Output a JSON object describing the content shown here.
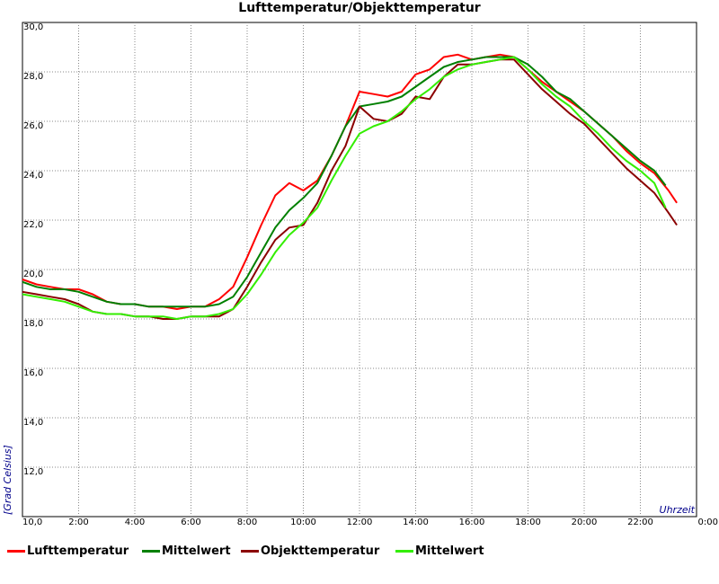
{
  "chart_data": {
    "type": "line",
    "title": "Lufttemperatur/Objekttemperatur",
    "xlabel": "Uhrzeit",
    "ylabel": "[Grad Celsius]",
    "xlim": [
      0,
      24
    ],
    "ylim": [
      10,
      30
    ],
    "grid": true,
    "legend_position": "bottom",
    "x_ticks": [
      "0:00",
      "2:00",
      "4:00",
      "6:00",
      "8:00",
      "10:00",
      "12:00",
      "14:00",
      "16:00",
      "18:00",
      "20:00",
      "22:00",
      "0:00"
    ],
    "y_ticks": [
      "10,0",
      "12,0",
      "14,0",
      "16,0",
      "18,0",
      "20,0",
      "22,0",
      "24,0",
      "26,0",
      "28,0",
      "30,0"
    ],
    "series": [
      {
        "name": "Lufttemperatur",
        "color": "#ff0000",
        "x": [
          0,
          0.5,
          1,
          1.5,
          2,
          2.5,
          3,
          3.5,
          4,
          4.5,
          5,
          5.5,
          6,
          6.5,
          7,
          7.5,
          8,
          8.5,
          9,
          9.5,
          10,
          10.5,
          11,
          11.5,
          12,
          12.5,
          13,
          13.5,
          14,
          14.5,
          15,
          15.5,
          16,
          16.5,
          17,
          17.5,
          18,
          18.5,
          19,
          19.5,
          20,
          20.5,
          21,
          21.5,
          22,
          22.5,
          23,
          23.3
        ],
        "y": [
          19.6,
          19.4,
          19.3,
          19.2,
          19.2,
          19.0,
          18.7,
          18.6,
          18.6,
          18.5,
          18.5,
          18.4,
          18.5,
          18.5,
          18.8,
          19.3,
          20.5,
          21.8,
          23.0,
          23.5,
          23.2,
          23.6,
          24.6,
          25.8,
          27.2,
          27.1,
          27.0,
          27.2,
          27.9,
          28.1,
          28.6,
          28.7,
          28.5,
          28.6,
          28.7,
          28.6,
          28.1,
          27.6,
          27.2,
          26.8,
          26.4,
          25.9,
          25.4,
          24.8,
          24.3,
          23.9,
          23.2,
          22.7
        ]
      },
      {
        "name": "Mittelwert",
        "color": "#008000",
        "x": [
          0,
          0.5,
          1,
          1.5,
          2,
          2.5,
          3,
          3.5,
          4,
          4.5,
          5,
          5.5,
          6,
          6.5,
          7,
          7.5,
          8,
          8.5,
          9,
          9.5,
          10,
          10.5,
          11,
          11.5,
          12,
          12.5,
          13,
          13.5,
          14,
          14.5,
          15,
          15.5,
          16,
          16.5,
          17,
          17.5,
          18,
          18.5,
          19,
          19.5,
          20,
          20.5,
          21,
          21.5,
          22,
          22.5,
          22.9
        ],
        "y": [
          19.5,
          19.3,
          19.2,
          19.2,
          19.1,
          18.9,
          18.7,
          18.6,
          18.6,
          18.5,
          18.5,
          18.5,
          18.5,
          18.5,
          18.6,
          18.9,
          19.7,
          20.7,
          21.7,
          22.4,
          22.9,
          23.5,
          24.6,
          25.8,
          26.6,
          26.7,
          26.8,
          27.0,
          27.4,
          27.8,
          28.2,
          28.4,
          28.5,
          28.6,
          28.6,
          28.6,
          28.3,
          27.8,
          27.2,
          26.9,
          26.4,
          25.9,
          25.4,
          24.9,
          24.4,
          24.0,
          23.4
        ]
      },
      {
        "name": "Objekttemperatur",
        "color": "#8b0000",
        "x": [
          0,
          0.5,
          1,
          1.5,
          2,
          2.5,
          3,
          3.5,
          4,
          4.5,
          5,
          5.5,
          6,
          6.5,
          7,
          7.5,
          8,
          8.5,
          9,
          9.5,
          10,
          10.5,
          11,
          11.5,
          12,
          12.5,
          13,
          13.5,
          14,
          14.5,
          15,
          15.5,
          16,
          16.5,
          17,
          17.5,
          18,
          18.5,
          19,
          19.5,
          20,
          20.5,
          21,
          21.5,
          22,
          22.5,
          23,
          23.3
        ],
        "y": [
          19.1,
          19.0,
          18.9,
          18.8,
          18.6,
          18.3,
          18.2,
          18.2,
          18.1,
          18.1,
          18.0,
          18.0,
          18.1,
          18.1,
          18.1,
          18.4,
          19.3,
          20.3,
          21.2,
          21.7,
          21.8,
          22.7,
          24.0,
          25.0,
          26.6,
          26.1,
          26.0,
          26.3,
          27.0,
          26.9,
          27.8,
          28.3,
          28.3,
          28.4,
          28.5,
          28.5,
          27.9,
          27.3,
          26.8,
          26.3,
          25.9,
          25.3,
          24.7,
          24.1,
          23.6,
          23.1,
          22.3,
          21.8
        ]
      },
      {
        "name": "Mittelwert",
        "color": "#33ee00",
        "x": [
          0,
          0.5,
          1,
          1.5,
          2,
          2.5,
          3,
          3.5,
          4,
          4.5,
          5,
          5.5,
          6,
          6.5,
          7,
          7.5,
          8,
          8.5,
          9,
          9.5,
          10,
          10.5,
          11,
          11.5,
          12,
          12.5,
          13,
          13.5,
          14,
          14.5,
          15,
          15.5,
          16,
          16.5,
          17,
          17.5,
          18,
          18.5,
          19,
          19.5,
          20,
          20.5,
          21,
          21.5,
          22,
          22.5,
          22.9
        ],
        "y": [
          19.0,
          18.9,
          18.8,
          18.7,
          18.5,
          18.3,
          18.2,
          18.2,
          18.1,
          18.1,
          18.1,
          18.0,
          18.1,
          18.1,
          18.2,
          18.4,
          19.0,
          19.8,
          20.7,
          21.4,
          21.9,
          22.5,
          23.6,
          24.6,
          25.5,
          25.8,
          26.0,
          26.4,
          26.9,
          27.3,
          27.8,
          28.1,
          28.3,
          28.4,
          28.5,
          28.6,
          28.1,
          27.5,
          27.0,
          26.6,
          26.0,
          25.5,
          24.9,
          24.4,
          24.0,
          23.5,
          22.5
        ]
      }
    ]
  }
}
